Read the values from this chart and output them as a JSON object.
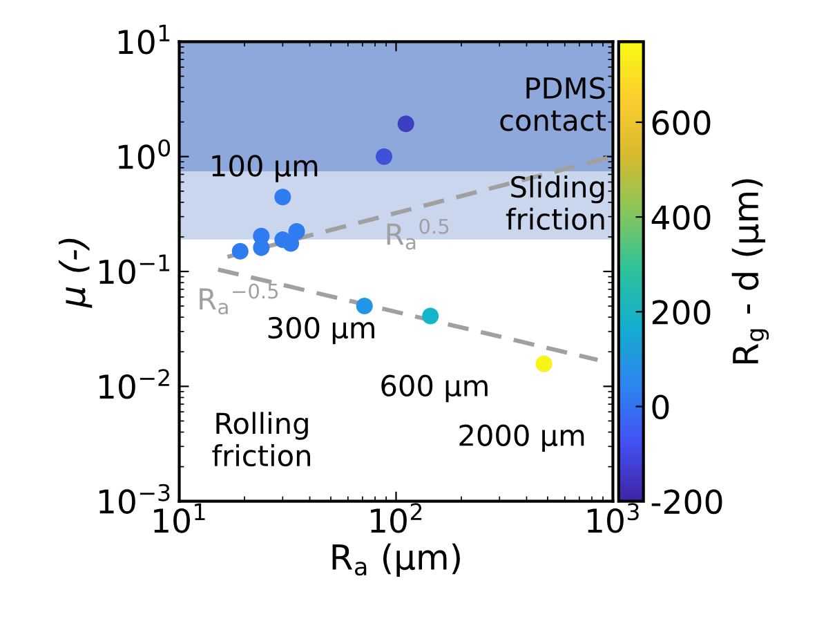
{
  "chart_data": {
    "type": "scatter",
    "xlabel": "R$_{a}$ (µm)",
    "ylabel": "µ (-)",
    "clabel": "R$_{g}$ - d (µm)",
    "log": "xy",
    "grid": false,
    "xlim": [
      10,
      1000
    ],
    "xticks": [
      {
        "value": 10,
        "label": "10$^{1}$"
      },
      {
        "value": 100,
        "label": "10$^{2}$"
      },
      {
        "value": 1000,
        "label": "10$^{3}$"
      }
    ],
    "ylim": [
      0.001,
      10
    ],
    "yticks": [
      {
        "value": 0.001,
        "label": "10$^{−3}$"
      },
      {
        "value": 0.01,
        "label": "10$^{−2}$"
      },
      {
        "value": 0.1,
        "label": "10$^{−1}$"
      },
      {
        "value": 1,
        "label": "10$^{0}$"
      },
      {
        "value": 10,
        "label": "10$^{1}$"
      }
    ],
    "clim": [
      -200,
      770
    ],
    "cticks": [
      -200,
      0,
      200,
      400,
      600
    ],
    "series": [
      {
        "marker": "circle",
        "x": [
          111,
          88,
          30,
          23.9,
          19.1,
          23.9,
          30,
          32.7,
          34.8,
          71.5,
          144,
          481
        ],
        "values": [
          1.93,
          1.0,
          0.445,
          0.203,
          0.15,
          0.161,
          0.189,
          0.175,
          0.223,
          0.05,
          0.041,
          0.0157
        ],
        "colors": [
          "#3b3fc0",
          "#3f51d6",
          "#2f7cf0",
          "#2f7cf0",
          "#2f7cf0",
          "#2f7cf0",
          "#2f7cf0",
          "#2f7cf0",
          "#2f7cf0",
          "#2196e8",
          "#13b5c8",
          "#f5f518"
        ]
      },
      {
        "type": "line",
        "x": [
          16.7,
          1000
        ],
        "values": [
          0.134,
          1.0
        ],
        "color": "#a0a0a0",
        "line_style": "dashed"
      },
      {
        "type": "line",
        "x": [
          15.1,
          850
        ],
        "values": [
          0.104,
          0.017
        ],
        "color": "#a0a0a0",
        "line_style": "dashed"
      }
    ],
    "bands": [
      {
        "axis": "y",
        "from": 0.74,
        "to": 10,
        "label": "PDMS\ncontact",
        "color": "#8fa8dc"
      },
      {
        "axis": "y",
        "from": 0.19,
        "to": 0.74,
        "label": "Sliding\nfriction",
        "color": "#c9d6ee"
      }
    ],
    "annotations": [
      {
        "text": "100 µm",
        "x": 24.7,
        "y": 0.79
      },
      {
        "text": "R$_{a}$$^{0.5}$",
        "x": 126,
        "y": 0.207
      },
      "300 µm",
      "600 µm",
      "2000 µm",
      "Rolling\nfriction",
      "R$_{a}$$^{−0.5}$"
    ]
  }
}
